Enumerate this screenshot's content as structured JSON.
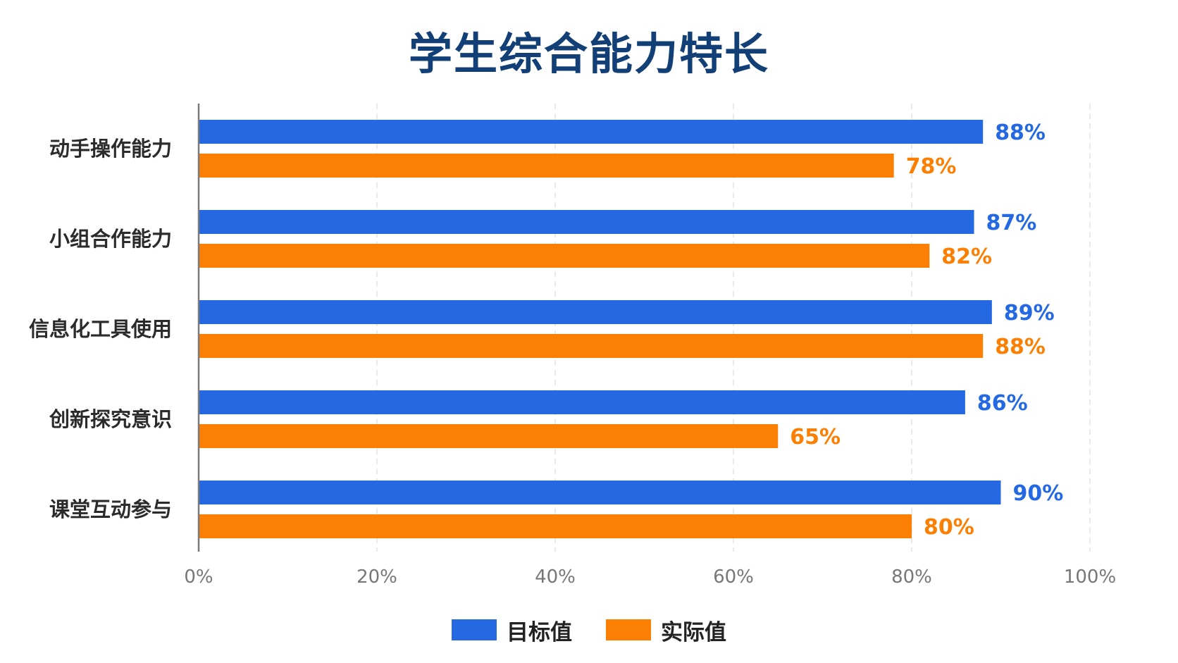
{
  "title": "学生综合能力特长",
  "colors": {
    "target": "#2469e2",
    "actual": "#fb7f03",
    "title": "#123f76",
    "axis": "#777777",
    "grid": "#e3e3e3"
  },
  "chart_data": {
    "type": "bar",
    "orientation": "horizontal",
    "title": "学生综合能力特长",
    "categories": [
      "动手操作能力",
      "小组合作能力",
      "信息化工具使用",
      "创新探究意识",
      "课堂互动参与"
    ],
    "series": [
      {
        "name": "目标值",
        "values": [
          88,
          87,
          89,
          86,
          90
        ],
        "labels": [
          "88%",
          "87%",
          "89%",
          "86%",
          "90%"
        ]
      },
      {
        "name": "实际值",
        "values": [
          78,
          82,
          88,
          65,
          80
        ],
        "labels": [
          "78%",
          "82%",
          "88%",
          "65%",
          "80%"
        ]
      }
    ],
    "xlim": [
      0,
      100
    ],
    "xticks": [
      0,
      20,
      40,
      60,
      80,
      100
    ],
    "xtick_labels": [
      "0%",
      "20%",
      "40%",
      "60%",
      "80%",
      "100%"
    ],
    "grid": "vertical dashed",
    "legend": "bottom-center"
  }
}
